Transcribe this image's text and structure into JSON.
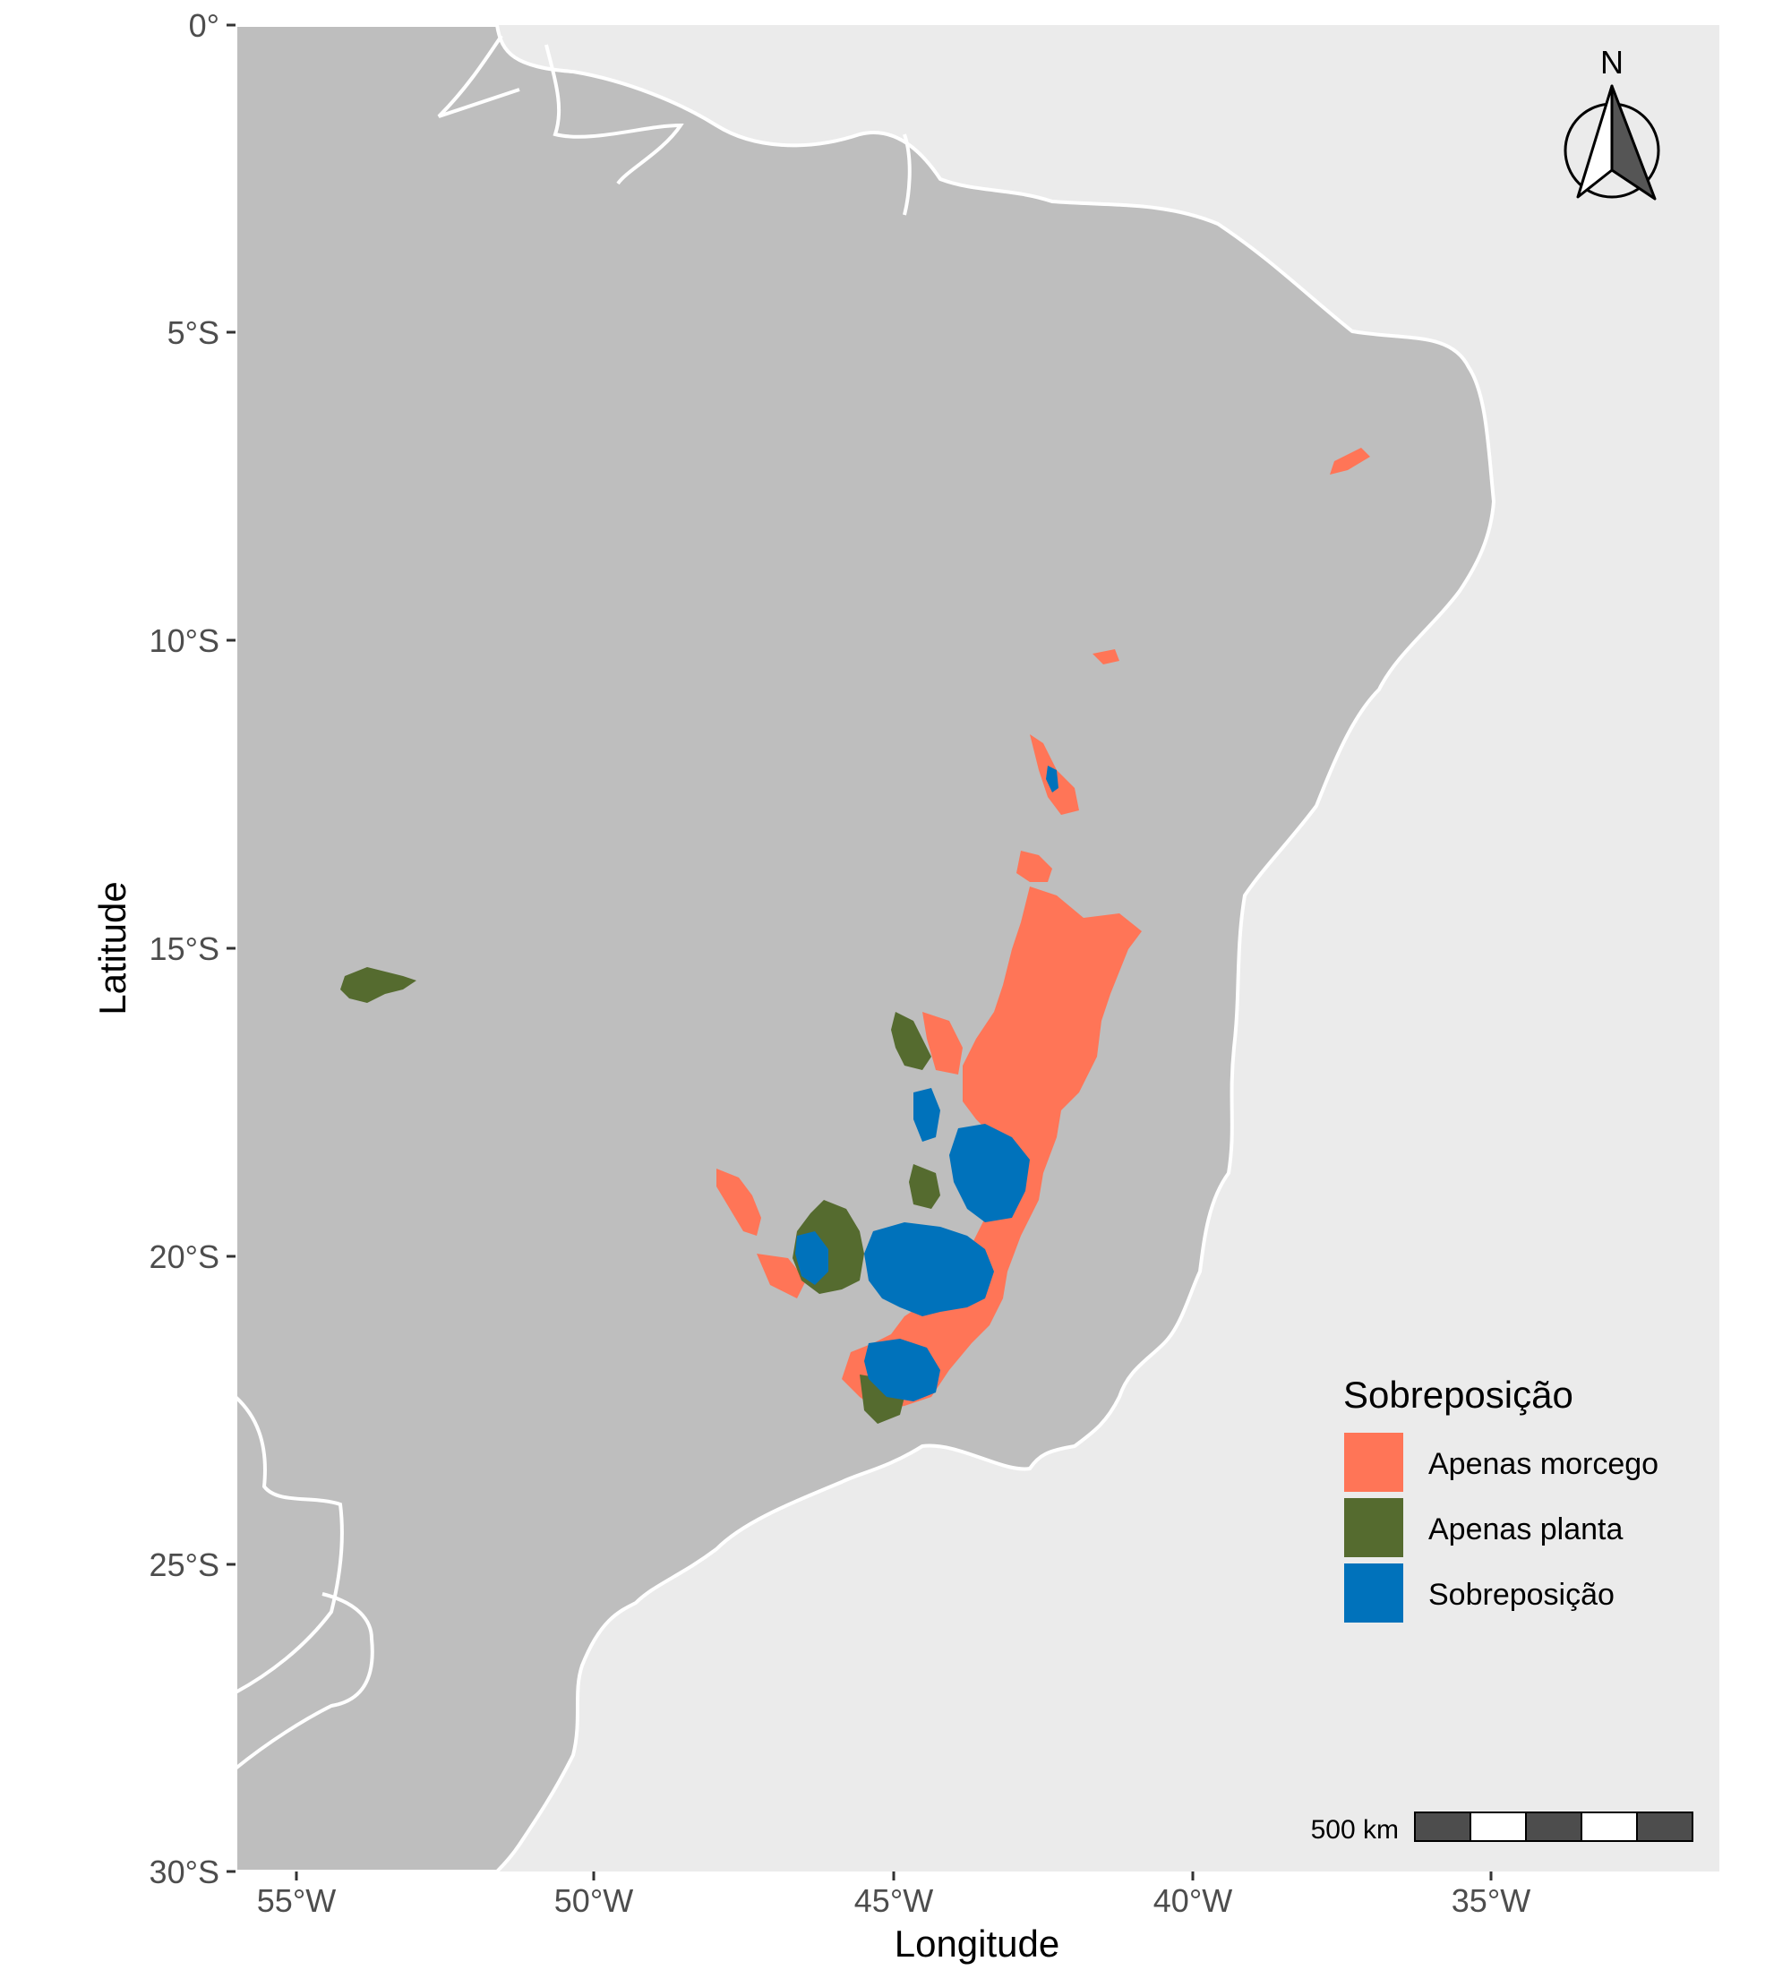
{
  "map": {
    "x_axis_title": "Longitude",
    "y_axis_title": "Latitude",
    "x_ticks": [
      "55°W",
      "50°W",
      "45°W",
      "40°W",
      "35°W"
    ],
    "y_ticks": [
      "0°",
      "5°S",
      "10°S",
      "15°S",
      "20°S",
      "25°S",
      "30°S"
    ],
    "x_range_deg_lon": [
      -56,
      -31.3
    ],
    "y_range_deg_lat": [
      0,
      -30
    ],
    "land_color": "#bebebe",
    "sea_color": "#ebebeb",
    "border_color": "#ffffff"
  },
  "legend": {
    "title": "Sobreposição",
    "items": [
      {
        "label": "Apenas morcego",
        "color": "#ff7557"
      },
      {
        "label": "Apenas planta",
        "color": "#556b2f"
      },
      {
        "label": "Sobreposição",
        "color": "#0072bb"
      }
    ]
  },
  "north_arrow": {
    "label": "N",
    "icon": "north-arrow-icon"
  },
  "scale_bar": {
    "label": "500 km"
  }
}
